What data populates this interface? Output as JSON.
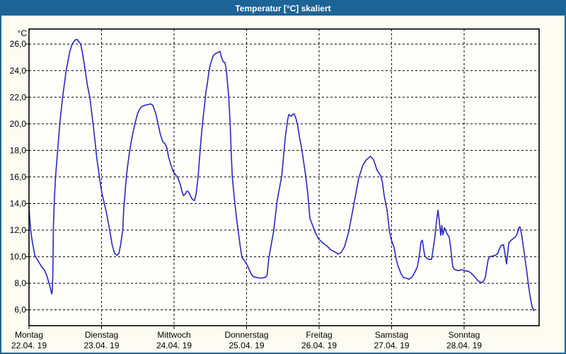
{
  "window": {
    "title": "Temperatur [°C] skaliert"
  },
  "colors": {
    "titlebar": "#1D6496",
    "window_background": "#FCFCF2",
    "plot_background": "#FEFEFA",
    "grid": "#000000",
    "line": "#2828BE",
    "text": "#000000"
  },
  "chart_data": {
    "type": "line",
    "title": "Temperatur [°C] skaliert",
    "xlabel": "",
    "ylabel": "°C",
    "grid": true,
    "legend_position": "none",
    "xlim": [
      0,
      7.034
    ],
    "ylim": [
      4.81,
      27.13
    ],
    "y_ticks": [
      {
        "v": 6,
        "label": "6,0"
      },
      {
        "v": 8,
        "label": "8,0"
      },
      {
        "v": 10,
        "label": "10,0"
      },
      {
        "v": 12,
        "label": "12,0"
      },
      {
        "v": 14,
        "label": "14,0"
      },
      {
        "v": 16,
        "label": "16,0"
      },
      {
        "v": 18,
        "label": "18,0"
      },
      {
        "v": 20,
        "label": "20,0"
      },
      {
        "v": 22,
        "label": "22,0"
      },
      {
        "v": 24,
        "label": "24,0"
      },
      {
        "v": 26,
        "label": "26,0"
      }
    ],
    "x_ticks": [
      {
        "d": 0,
        "label": "Montag",
        "date": "22.04. 19"
      },
      {
        "d": 1,
        "label": "Dienstag",
        "date": "23.04. 19"
      },
      {
        "d": 2,
        "label": "Mittwoch",
        "date": "24.04. 19"
      },
      {
        "d": 3,
        "label": "Donnerstag",
        "date": "25.04. 19"
      },
      {
        "d": 4,
        "label": "Freitag",
        "date": "26.04. 19"
      },
      {
        "d": 5,
        "label": "Samstag",
        "date": "27.04. 19"
      },
      {
        "d": 6,
        "label": "Sonntag",
        "date": "28.04. 19"
      }
    ],
    "series": [
      {
        "name": "Temperatur [°C] skaliert",
        "color": "#2828BE",
        "points": [
          [
            0.0,
            13.8
          ],
          [
            0.01,
            12.9
          ],
          [
            0.02,
            12.2
          ],
          [
            0.032,
            11.6
          ],
          [
            0.05,
            11.0
          ],
          [
            0.08,
            10.1
          ],
          [
            0.107,
            9.85
          ],
          [
            0.146,
            9.5
          ],
          [
            0.179,
            9.2
          ],
          [
            0.212,
            9.0
          ],
          [
            0.244,
            8.6
          ],
          [
            0.276,
            8.0
          ],
          [
            0.293,
            7.7
          ],
          [
            0.305,
            7.35
          ],
          [
            0.315,
            7.2
          ],
          [
            0.322,
            7.5
          ],
          [
            0.33,
            9.0
          ],
          [
            0.337,
            12.3
          ],
          [
            0.351,
            14.5
          ],
          [
            0.366,
            16.0
          ],
          [
            0.395,
            18.0
          ],
          [
            0.424,
            20.0
          ],
          [
            0.463,
            22.0
          ],
          [
            0.512,
            24.0
          ],
          [
            0.561,
            25.4
          ],
          [
            0.595,
            26.0
          ],
          [
            0.634,
            26.3
          ],
          [
            0.663,
            26.35
          ],
          [
            0.712,
            26.0
          ],
          [
            0.741,
            25.2
          ],
          [
            0.776,
            24.0
          ],
          [
            0.805,
            22.9
          ],
          [
            0.839,
            22.0
          ],
          [
            0.883,
            20.0
          ],
          [
            0.912,
            18.6
          ],
          [
            0.937,
            17.3
          ],
          [
            0.951,
            16.8
          ],
          [
            0.976,
            15.8
          ],
          [
            1.005,
            14.8
          ],
          [
            1.068,
            13.3
          ],
          [
            1.112,
            12.0
          ],
          [
            1.146,
            10.9
          ],
          [
            1.18,
            10.25
          ],
          [
            1.21,
            10.1
          ],
          [
            1.24,
            10.25
          ],
          [
            1.263,
            10.9
          ],
          [
            1.293,
            12.0
          ],
          [
            1.307,
            13.7
          ],
          [
            1.324,
            14.75
          ],
          [
            1.334,
            15.45
          ],
          [
            1.349,
            16.35
          ],
          [
            1.366,
            17.05
          ],
          [
            1.382,
            17.75
          ],
          [
            1.398,
            18.3
          ],
          [
            1.421,
            19.0
          ],
          [
            1.444,
            19.6
          ],
          [
            1.47,
            20.2
          ],
          [
            1.496,
            20.75
          ],
          [
            1.525,
            21.1
          ],
          [
            1.558,
            21.3
          ],
          [
            1.6,
            21.4
          ],
          [
            1.65,
            21.45
          ],
          [
            1.673,
            21.5
          ],
          [
            1.707,
            21.4
          ],
          [
            1.746,
            20.8
          ],
          [
            1.779,
            20.0
          ],
          [
            1.812,
            19.2
          ],
          [
            1.844,
            18.65
          ],
          [
            1.876,
            18.5
          ],
          [
            1.9,
            18.2
          ],
          [
            1.925,
            17.5
          ],
          [
            1.958,
            16.87
          ],
          [
            1.99,
            16.4
          ],
          [
            2.023,
            16.15
          ],
          [
            2.056,
            15.9
          ],
          [
            2.088,
            15.4
          ],
          [
            2.11,
            14.9
          ],
          [
            2.13,
            14.6
          ],
          [
            2.153,
            14.7
          ],
          [
            2.176,
            14.93
          ],
          [
            2.195,
            14.9
          ],
          [
            2.218,
            14.68
          ],
          [
            2.241,
            14.4
          ],
          [
            2.266,
            14.26
          ],
          [
            2.283,
            14.23
          ],
          [
            2.305,
            14.76
          ],
          [
            2.332,
            16.0
          ],
          [
            2.354,
            17.6
          ],
          [
            2.374,
            18.93
          ],
          [
            2.397,
            20.26
          ],
          [
            2.42,
            21.4
          ],
          [
            2.439,
            22.4
          ],
          [
            2.456,
            22.9
          ],
          [
            2.483,
            24.0
          ],
          [
            2.502,
            24.5
          ],
          [
            2.527,
            24.9
          ],
          [
            2.543,
            25.15
          ],
          [
            2.576,
            25.3
          ],
          [
            2.62,
            25.4
          ],
          [
            2.633,
            25.45
          ],
          [
            2.659,
            24.9
          ],
          [
            2.683,
            24.65
          ],
          [
            2.702,
            24.6
          ],
          [
            2.722,
            24.0
          ],
          [
            2.754,
            22.0
          ],
          [
            2.774,
            20.0
          ],
          [
            2.787,
            18.0
          ],
          [
            2.803,
            16.0
          ],
          [
            2.829,
            14.5
          ],
          [
            2.859,
            13.0
          ],
          [
            2.888,
            11.8
          ],
          [
            2.912,
            10.8
          ],
          [
            2.937,
            9.95
          ],
          [
            2.985,
            9.6
          ],
          [
            3.015,
            9.3
          ],
          [
            3.063,
            8.7
          ],
          [
            3.093,
            8.5
          ],
          [
            3.132,
            8.45
          ],
          [
            3.171,
            8.4
          ],
          [
            3.22,
            8.4
          ],
          [
            3.259,
            8.45
          ],
          [
            3.283,
            8.6
          ],
          [
            3.307,
            9.9
          ],
          [
            3.373,
            11.9
          ],
          [
            3.421,
            14.2
          ],
          [
            3.486,
            16.1
          ],
          [
            3.502,
            17.1
          ],
          [
            3.535,
            19.0
          ],
          [
            3.568,
            20.35
          ],
          [
            3.583,
            20.7
          ],
          [
            3.617,
            20.55
          ],
          [
            3.632,
            20.7
          ],
          [
            3.656,
            20.75
          ],
          [
            3.681,
            20.4
          ],
          [
            3.707,
            19.8
          ],
          [
            3.73,
            19.0
          ],
          [
            3.763,
            18.05
          ],
          [
            3.788,
            17.1
          ],
          [
            3.815,
            16.1
          ],
          [
            3.844,
            14.75
          ],
          [
            3.873,
            12.9
          ],
          [
            3.922,
            12.2
          ],
          [
            3.941,
            11.9
          ],
          [
            3.99,
            11.35
          ],
          [
            4.059,
            11.0
          ],
          [
            4.11,
            10.8
          ],
          [
            4.165,
            10.5
          ],
          [
            4.22,
            10.35
          ],
          [
            4.263,
            10.2
          ],
          [
            4.302,
            10.3
          ],
          [
            4.351,
            10.75
          ],
          [
            4.41,
            11.9
          ],
          [
            4.478,
            13.9
          ],
          [
            4.546,
            15.9
          ],
          [
            4.605,
            16.9
          ],
          [
            4.654,
            17.3
          ],
          [
            4.707,
            17.55
          ],
          [
            4.751,
            17.3
          ],
          [
            4.8,
            16.5
          ],
          [
            4.849,
            16.1
          ],
          [
            4.873,
            15.6
          ],
          [
            4.898,
            14.56
          ],
          [
            4.937,
            13.5
          ],
          [
            4.971,
            11.9
          ],
          [
            5.0,
            11.2
          ],
          [
            5.034,
            10.7
          ],
          [
            5.063,
            9.8
          ],
          [
            5.093,
            9.25
          ],
          [
            5.132,
            8.7
          ],
          [
            5.161,
            8.45
          ],
          [
            5.19,
            8.4
          ],
          [
            5.22,
            8.35
          ],
          [
            5.239,
            8.3
          ],
          [
            5.278,
            8.45
          ],
          [
            5.307,
            8.7
          ],
          [
            5.356,
            9.25
          ],
          [
            5.385,
            10.2
          ],
          [
            5.405,
            11.1
          ],
          [
            5.424,
            11.24
          ],
          [
            5.444,
            10.5
          ],
          [
            5.458,
            10.05
          ],
          [
            5.483,
            9.9
          ],
          [
            5.512,
            9.8
          ],
          [
            5.551,
            9.8
          ],
          [
            5.58,
            10.85
          ],
          [
            5.6,
            11.6
          ],
          [
            5.62,
            12.7
          ],
          [
            5.639,
            13.5
          ],
          [
            5.654,
            12.9
          ],
          [
            5.668,
            12.1
          ],
          [
            5.678,
            11.6
          ],
          [
            5.693,
            12.36
          ],
          [
            5.707,
            11.65
          ],
          [
            5.73,
            12.18
          ],
          [
            5.763,
            11.74
          ],
          [
            5.795,
            11.47
          ],
          [
            5.815,
            10.67
          ],
          [
            5.829,
            9.96
          ],
          [
            5.844,
            9.25
          ],
          [
            5.861,
            9.07
          ],
          [
            5.893,
            8.98
          ],
          [
            5.925,
            8.95
          ],
          [
            5.958,
            9.02
          ],
          [
            5.99,
            8.98
          ],
          [
            6.023,
            8.93
          ],
          [
            6.056,
            8.9
          ],
          [
            6.088,
            8.81
          ],
          [
            6.12,
            8.63
          ],
          [
            6.153,
            8.45
          ],
          [
            6.185,
            8.22
          ],
          [
            6.217,
            8.1
          ],
          [
            6.241,
            8.05
          ],
          [
            6.266,
            8.15
          ],
          [
            6.293,
            8.45
          ],
          [
            6.315,
            9.25
          ],
          [
            6.332,
            9.78
          ],
          [
            6.354,
            10.0
          ],
          [
            6.39,
            10.05
          ],
          [
            6.429,
            10.1
          ],
          [
            6.461,
            10.23
          ],
          [
            6.488,
            10.58
          ],
          [
            6.51,
            10.85
          ],
          [
            6.543,
            10.9
          ],
          [
            6.585,
            9.46
          ],
          [
            6.615,
            11.03
          ],
          [
            6.641,
            11.2
          ],
          [
            6.673,
            11.35
          ],
          [
            6.705,
            11.47
          ],
          [
            6.732,
            11.74
          ],
          [
            6.754,
            12.18
          ],
          [
            6.771,
            12.24
          ],
          [
            6.793,
            11.65
          ],
          [
            6.81,
            11.03
          ],
          [
            6.826,
            10.4
          ],
          [
            6.842,
            9.75
          ],
          [
            6.859,
            9.07
          ],
          [
            6.875,
            8.41
          ],
          [
            6.891,
            7.74
          ],
          [
            6.907,
            7.11
          ],
          [
            6.924,
            6.58
          ],
          [
            6.939,
            6.2
          ],
          [
            6.961,
            5.95
          ]
        ]
      }
    ]
  }
}
